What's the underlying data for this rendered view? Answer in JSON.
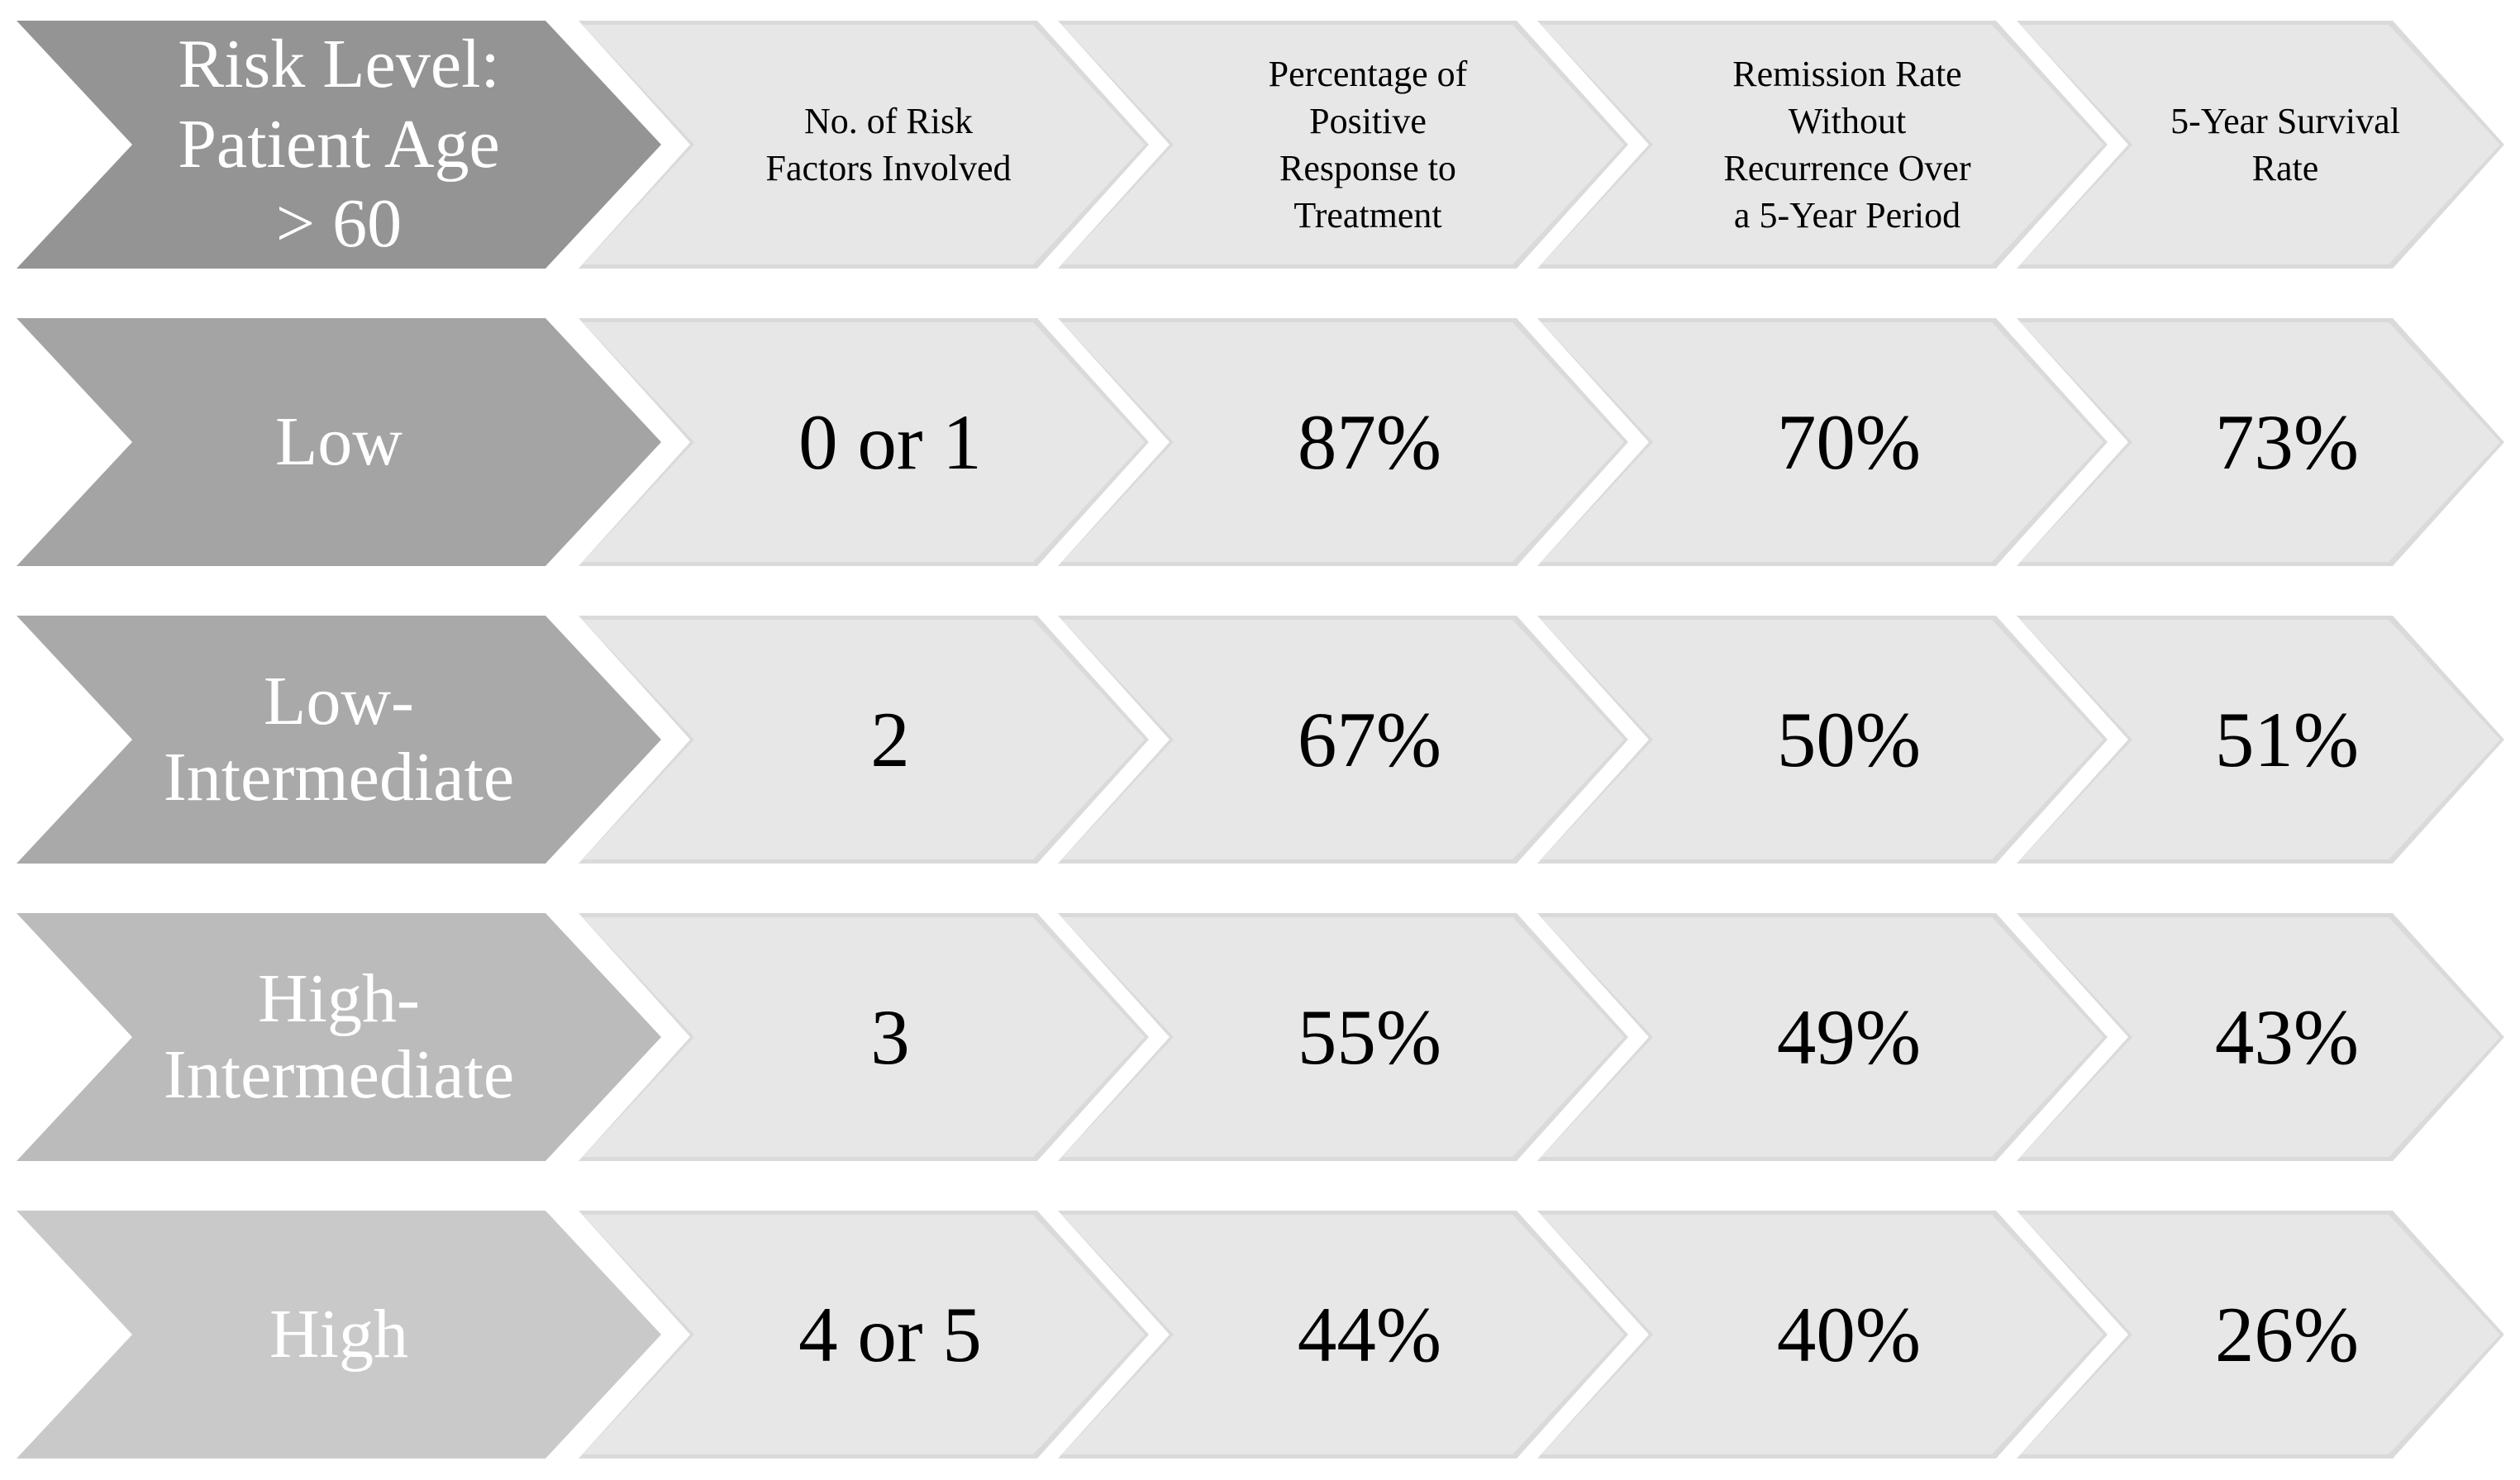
{
  "diagram": {
    "title_arrow": {
      "lines": [
        "Risk Level:",
        "Patient Age",
        "> 60"
      ],
      "bg": "#949494",
      "text_color": "#ffffff"
    },
    "column_headers": [
      {
        "lines": [
          "No. of Risk",
          "Factors Involved"
        ]
      },
      {
        "lines": [
          "Percentage of",
          "Positive",
          "Response to",
          "Treatment"
        ]
      },
      {
        "lines": [
          "Remission Rate",
          "Without",
          "Recurrence Over",
          "a 5-Year Period"
        ]
      },
      {
        "lines": [
          "5-Year Survival",
          "Rate"
        ]
      }
    ],
    "rows": [
      {
        "label_lines": [
          "Low"
        ],
        "label_bg": "#a4a4a4",
        "values": [
          "0 or 1",
          "87%",
          "70%",
          "73%"
        ]
      },
      {
        "label_lines": [
          "Low-",
          "Intermediate"
        ],
        "label_bg": "#a9a9a9",
        "values": [
          "2",
          "67%",
          "50%",
          "51%"
        ]
      },
      {
        "label_lines": [
          "High-",
          "Intermediate"
        ],
        "label_bg": "#bbbbbb",
        "values": [
          "3",
          "55%",
          "49%",
          "43%"
        ]
      },
      {
        "label_lines": [
          "High"
        ],
        "label_bg": "#c9c9c9",
        "values": [
          "4 or 5",
          "44%",
          "40%",
          "26%"
        ]
      }
    ],
    "colors": {
      "value_arrow_edge": "#dadada",
      "value_arrow_bg": "#e7e7e7",
      "value_text": "#000000"
    }
  },
  "chart_data": {
    "type": "table",
    "title": "Risk Level: Patient Age > 60",
    "columns": [
      "Risk Level",
      "No. of Risk Factors Involved",
      "Percentage of Positive Response to Treatment",
      "Remission Rate Without Recurrence Over a 5-Year Period",
      "5-Year Survival Rate"
    ],
    "rows": [
      [
        "Low",
        "0 or 1",
        "87%",
        "70%",
        "73%"
      ],
      [
        "Low-Intermediate",
        "2",
        "67%",
        "50%",
        "51%"
      ],
      [
        "High-Intermediate",
        "3",
        "55%",
        "49%",
        "43%"
      ],
      [
        "High",
        "4 or 5",
        "44%",
        "40%",
        "26%"
      ]
    ]
  }
}
